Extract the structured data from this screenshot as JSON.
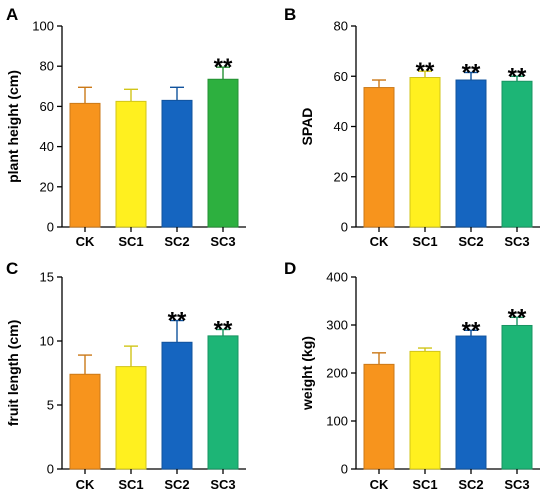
{
  "chart_data": [
    {
      "panel": "A",
      "type": "bar",
      "categories": [
        "CK",
        "SC1",
        "SC2",
        "SC3"
      ],
      "values": [
        61.5,
        62.5,
        63,
        73.5
      ],
      "errors": [
        8,
        6,
        6.5,
        6
      ],
      "significance": [
        "",
        "",
        "",
        "**"
      ],
      "xlabel": "",
      "ylabel": "plant height (cm)",
      "ylim": [
        0,
        100
      ],
      "yticks": [
        0,
        20,
        40,
        60,
        80,
        100
      ],
      "grid": false,
      "bar_colors": [
        "#F7941D",
        "#FFF01F",
        "#1565C0",
        "#2DB03F"
      ]
    },
    {
      "panel": "B",
      "type": "bar",
      "categories": [
        "CK",
        "SC1",
        "SC2",
        "SC3"
      ],
      "values": [
        55.5,
        59.5,
        58.5,
        58
      ],
      "errors": [
        3,
        2.5,
        3,
        2
      ],
      "significance": [
        "",
        "**",
        "**",
        "**"
      ],
      "xlabel": "",
      "ylabel": "SPAD",
      "ylim": [
        0,
        80
      ],
      "yticks": [
        0,
        20,
        40,
        60,
        80
      ],
      "grid": false,
      "bar_colors": [
        "#F7941D",
        "#FFF01F",
        "#1565C0",
        "#1DB576"
      ]
    },
    {
      "panel": "C",
      "type": "bar",
      "categories": [
        "CK",
        "SC1",
        "SC2",
        "SC3"
      ],
      "values": [
        7.4,
        8.0,
        9.9,
        10.4
      ],
      "errors": [
        1.5,
        1.6,
        1.7,
        0.5
      ],
      "significance": [
        "",
        "",
        "**",
        "**"
      ],
      "xlabel": "",
      "ylabel": "fruit length (cm)",
      "ylim": [
        0,
        15
      ],
      "yticks": [
        0,
        5,
        10,
        15
      ],
      "grid": false,
      "bar_colors": [
        "#F7941D",
        "#FFF01F",
        "#1565C0",
        "#1DB576"
      ]
    },
    {
      "panel": "D",
      "type": "bar",
      "categories": [
        "CK",
        "SC1",
        "SC2",
        "SC3"
      ],
      "values": [
        218,
        245,
        277,
        299
      ],
      "errors": [
        24,
        7,
        12,
        17
      ],
      "significance": [
        "",
        "",
        "**",
        "**"
      ],
      "xlabel": "",
      "ylabel": "weight (kg)",
      "ylim": [
        0,
        400
      ],
      "yticks": [
        0,
        100,
        200,
        300,
        400
      ],
      "grid": false,
      "bar_colors": [
        "#F7941D",
        "#FFF01F",
        "#1565C0",
        "#1DB576"
      ]
    }
  ]
}
